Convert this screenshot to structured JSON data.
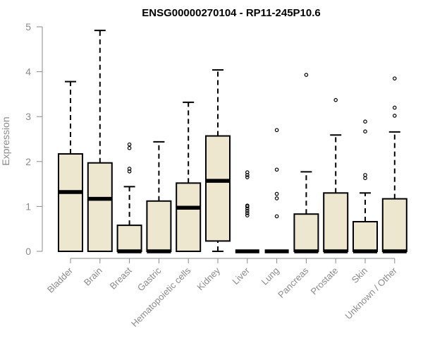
{
  "chart_data": {
    "type": "boxplot",
    "title": "ENSG00000270104 - RP11-245P10.6",
    "xlabel": "",
    "ylabel": "Expression",
    "ylim": [
      0,
      5
    ],
    "yticks": [
      "0",
      "1",
      "2",
      "3",
      "4",
      "5"
    ],
    "grid": false,
    "box_fill": "#ede7cf",
    "categories": [
      "Bladder",
      "Brain",
      "Breast",
      "Gastric",
      "Hematopoietic cells",
      "Kidney",
      "Liver",
      "Lung",
      "Pancreas",
      "Prostate",
      "Skin",
      "Unknown / Other"
    ],
    "boxes": [
      {
        "min": 0,
        "q1": 0,
        "median": 1.32,
        "q3": 2.17,
        "max": 3.78,
        "outliers": []
      },
      {
        "min": 0,
        "q1": 0,
        "median": 1.17,
        "q3": 1.97,
        "max": 4.92,
        "outliers": []
      },
      {
        "min": 0,
        "q1": 0,
        "median": 0,
        "q3": 0.58,
        "max": 1.44,
        "outliers": [
          1.78,
          1.84,
          2.3,
          2.38
        ]
      },
      {
        "min": 0,
        "q1": 0,
        "median": 0,
        "q3": 1.12,
        "max": 2.44,
        "outliers": []
      },
      {
        "min": 0,
        "q1": 0,
        "median": 0.97,
        "q3": 1.52,
        "max": 3.32,
        "outliers": []
      },
      {
        "min": 0,
        "q1": 0.23,
        "median": 1.57,
        "q3": 2.57,
        "max": 4.04,
        "outliers": []
      },
      {
        "min": 0,
        "q1": 0,
        "median": 0,
        "q3": 0,
        "max": 0,
        "outliers": [
          0.8,
          0.85,
          0.9,
          0.95,
          1.0,
          1.02,
          1.65,
          1.7,
          1.76
        ]
      },
      {
        "min": 0,
        "q1": 0,
        "median": 0,
        "q3": 0,
        "max": 0,
        "outliers": [
          0.78,
          1.18,
          1.28,
          1.82,
          2.7
        ]
      },
      {
        "min": 0,
        "q1": 0,
        "median": 0,
        "q3": 0.83,
        "max": 1.77,
        "outliers": [
          3.93
        ]
      },
      {
        "min": 0,
        "q1": 0,
        "median": 0,
        "q3": 1.3,
        "max": 2.59,
        "outliers": [
          3.37
        ]
      },
      {
        "min": 0,
        "q1": 0,
        "median": 0,
        "q3": 0.66,
        "max": 1.3,
        "outliers": [
          1.63,
          1.7,
          2.67,
          2.89
        ]
      },
      {
        "min": 0,
        "q1": 0,
        "median": 0,
        "q3": 1.17,
        "max": 2.66,
        "outliers": [
          3.02,
          3.2,
          3.85
        ]
      }
    ]
  }
}
